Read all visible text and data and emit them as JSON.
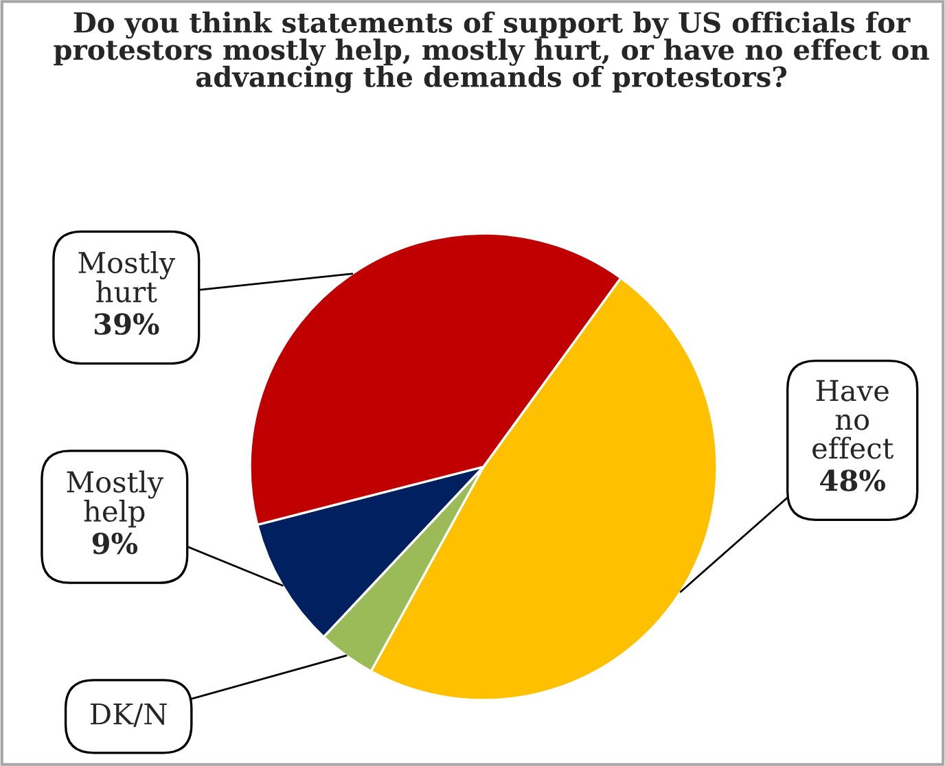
{
  "chart_data": {
    "type": "pie",
    "title": "Do you think statements of support by US officials for protestors mostly help, mostly hurt, or have no effect on advancing the demands of protestors?",
    "categories": [
      "Have no effect",
      "DK/N",
      "Mostly help",
      "Mostly hurt"
    ],
    "values": [
      48,
      4,
      9,
      39
    ],
    "value_labels": [
      "48%",
      null,
      "9%",
      "39%"
    ],
    "colors": [
      "#ffc000",
      "#9bbb59",
      "#002060",
      "#c00000"
    ],
    "legend": false
  }
}
